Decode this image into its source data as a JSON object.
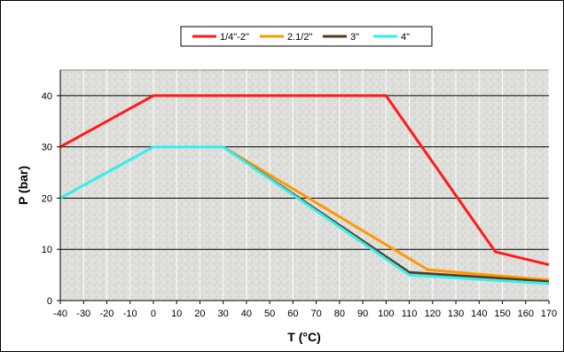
{
  "chart_data": {
    "type": "line",
    "title": "",
    "xlabel": "T (°C)",
    "ylabel": "P (bar)",
    "xlim": [
      -40,
      170
    ],
    "ylim": [
      0,
      45
    ],
    "x_ticks": [
      -40,
      -30,
      -20,
      -10,
      0,
      10,
      20,
      30,
      40,
      50,
      60,
      70,
      80,
      90,
      100,
      110,
      120,
      130,
      140,
      150,
      160,
      170
    ],
    "y_ticks": [
      0,
      10,
      20,
      30,
      40
    ],
    "grid": true,
    "legend_position": "top",
    "series": [
      {
        "name": "1/4\"-2\"",
        "color": "#ff1a1a",
        "x": [
          -40,
          0,
          100,
          147,
          170
        ],
        "y": [
          30,
          40,
          40,
          9.5,
          7
        ]
      },
      {
        "name": "2.1/2\"",
        "color": "#ff9900",
        "x": [
          30,
          118,
          170
        ],
        "y": [
          30,
          6,
          4
        ]
      },
      {
        "name": "3\"",
        "color": "#5a3a1a",
        "x": [
          30,
          110,
          170
        ],
        "y": [
          30,
          5.5,
          3.7
        ]
      },
      {
        "name": "4\"",
        "color": "#33eeee",
        "x": [
          -40,
          0,
          30,
          110,
          170
        ],
        "y": [
          20,
          30,
          30,
          5,
          3.3
        ]
      }
    ]
  }
}
